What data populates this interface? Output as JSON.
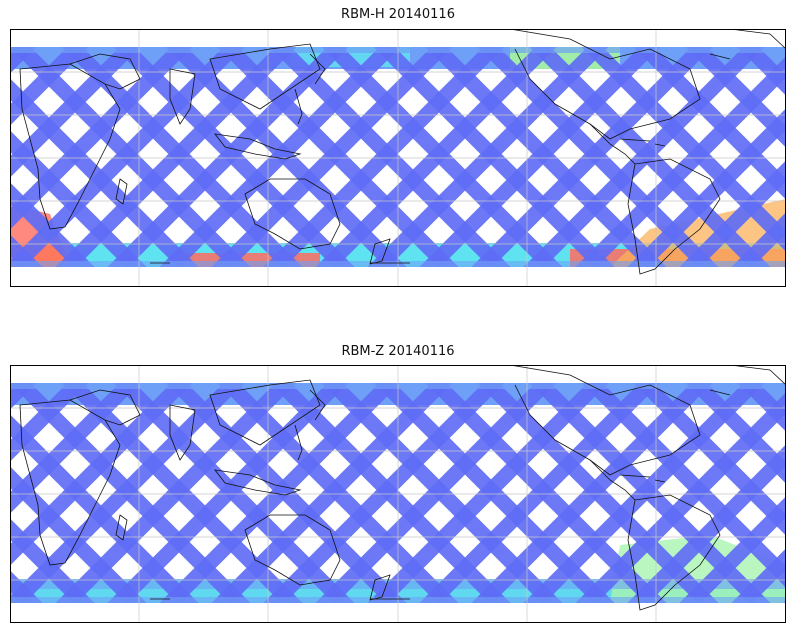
{
  "panels": [
    {
      "title": "RBM-H 20140116",
      "colors": {
        "base": "#5f6cf5",
        "light": "#6fa0f7",
        "cyan": "#60e3f0",
        "green": "#a5f5a0",
        "yellow": "#f5f56a",
        "orange": "#fbb15a",
        "red": "#ff6b5e"
      }
    },
    {
      "title": "RBM-Z 20140116",
      "colors": {
        "base": "#5f6cf5",
        "light": "#6fa0f7",
        "cyan": "#60d8f0",
        "green": "#a9f5b0",
        "yellow": "#dff59a",
        "orange": "#8cc8f5",
        "red": "#70b0f5"
      }
    }
  ]
}
